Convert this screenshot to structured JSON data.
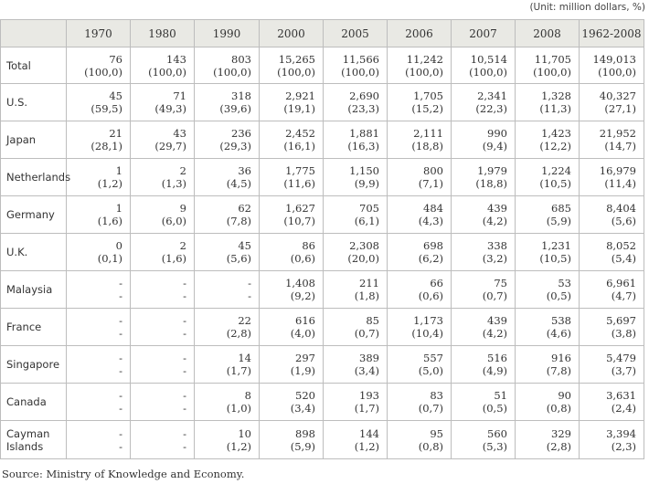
{
  "unit_note": "(Unit: million dollars, %)",
  "header": [
    "",
    "1970",
    "1980",
    "1990",
    "2000",
    "2005",
    "2006",
    "2007",
    "2008",
    "1962-2008"
  ],
  "rows": [
    {
      "label": "Total",
      "cells": [
        [
          "76",
          "(100,0)"
        ],
        [
          "143",
          "(100,0)"
        ],
        [
          "803",
          "(100,0)"
        ],
        [
          "15,265",
          "(100,0)"
        ],
        [
          "11,566",
          "(100,0)"
        ],
        [
          "11,242",
          "(100,0)"
        ],
        [
          "10,514",
          "(100,0)"
        ],
        [
          "11,705",
          "(100,0)"
        ],
        [
          "149,013",
          "(100,0)"
        ]
      ]
    },
    {
      "label": "U.S.",
      "cells": [
        [
          "45",
          "(59,5)"
        ],
        [
          "71",
          "(49,3)"
        ],
        [
          "318",
          "(39,6)"
        ],
        [
          "2,921",
          "(19,1)"
        ],
        [
          "2,690",
          "(23,3)"
        ],
        [
          "1,705",
          "(15,2)"
        ],
        [
          "2,341",
          "(22,3)"
        ],
        [
          "1,328",
          "(11,3)"
        ],
        [
          "40,327",
          "(27,1)"
        ]
      ]
    },
    {
      "label": "Japan",
      "cells": [
        [
          "21",
          "(28,1)"
        ],
        [
          "43",
          "(29,7)"
        ],
        [
          "236",
          "(29,3)"
        ],
        [
          "2,452",
          "(16,1)"
        ],
        [
          "1,881",
          "(16,3)"
        ],
        [
          "2,111",
          "(18,8)"
        ],
        [
          "990",
          "(9,4)"
        ],
        [
          "1,423",
          "(12,2)"
        ],
        [
          "21,952",
          "(14,7)"
        ]
      ]
    },
    {
      "label": "Netherlands",
      "cells": [
        [
          "1",
          "(1,2)"
        ],
        [
          "2",
          "(1,3)"
        ],
        [
          "36",
          "(4,5)"
        ],
        [
          "1,775",
          "(11,6)"
        ],
        [
          "1,150",
          "(9,9)"
        ],
        [
          "800",
          "(7,1)"
        ],
        [
          "1,979",
          "(18,8)"
        ],
        [
          "1,224",
          "(10,5)"
        ],
        [
          "16,979",
          "(11,4)"
        ]
      ]
    },
    {
      "label": "Germany",
      "cells": [
        [
          "1",
          "(1,6)"
        ],
        [
          "9",
          "(6,0)"
        ],
        [
          "62",
          "(7,8)"
        ],
        [
          "1,627",
          "(10,7)"
        ],
        [
          "705",
          "(6,1)"
        ],
        [
          "484",
          "(4,3)"
        ],
        [
          "439",
          "(4,2)"
        ],
        [
          "685",
          "(5,9)"
        ],
        [
          "8,404",
          "(5,6)"
        ]
      ]
    },
    {
      "label": "U.K.",
      "cells": [
        [
          "0",
          "(0,1)"
        ],
        [
          "2",
          "(1,6)"
        ],
        [
          "45",
          "(5,6)"
        ],
        [
          "86",
          "(0,6)"
        ],
        [
          "2,308",
          "(20,0)"
        ],
        [
          "698",
          "(6,2)"
        ],
        [
          "338",
          "(3,2)"
        ],
        [
          "1,231",
          "(10,5)"
        ],
        [
          "8,052",
          "(5,4)"
        ]
      ]
    },
    {
      "label": "Malaysia",
      "cells": [
        [
          "-",
          "-"
        ],
        [
          "-",
          "-"
        ],
        [
          "-",
          "-"
        ],
        [
          "1,408",
          "(9,2)"
        ],
        [
          "211",
          "(1,8)"
        ],
        [
          "66",
          "(0,6)"
        ],
        [
          "75",
          "(0,7)"
        ],
        [
          "53",
          "(0,5)"
        ],
        [
          "6,961",
          "(4,7)"
        ]
      ]
    },
    {
      "label": "France",
      "cells": [
        [
          "-",
          "-"
        ],
        [
          "-",
          "-"
        ],
        [
          "22",
          "(2,8)"
        ],
        [
          "616",
          "(4,0)"
        ],
        [
          "85",
          "(0,7)"
        ],
        [
          "1,173",
          "(10,4)"
        ],
        [
          "439",
          "(4,2)"
        ],
        [
          "538",
          "(4,6)"
        ],
        [
          "5,697",
          "(3,8)"
        ]
      ]
    },
    {
      "label": "Singapore",
      "cells": [
        [
          "-",
          "-"
        ],
        [
          "-",
          "-"
        ],
        [
          "14",
          "(1,7)"
        ],
        [
          "297",
          "(1,9)"
        ],
        [
          "389",
          "(3,4)"
        ],
        [
          "557",
          "(5,0)"
        ],
        [
          "516",
          "(4,9)"
        ],
        [
          "916",
          "(7,8)"
        ],
        [
          "5,479",
          "(3,7)"
        ]
      ]
    },
    {
      "label": "Canada",
      "cells": [
        [
          "-",
          "-"
        ],
        [
          "-",
          "-"
        ],
        [
          "8",
          "(1,0)"
        ],
        [
          "520",
          "(3,4)"
        ],
        [
          "193",
          "(1,7)"
        ],
        [
          "83",
          "(0,7)"
        ],
        [
          "51",
          "(0,5)"
        ],
        [
          "90",
          "(0,8)"
        ],
        [
          "3,631",
          "(2,4)"
        ]
      ]
    },
    {
      "label": "Cayman Islands",
      "label_lines": [
        "Cayman",
        "Islands"
      ],
      "cells": [
        [
          "-",
          "-"
        ],
        [
          "-",
          "-"
        ],
        [
          "10",
          "(1,2)"
        ],
        [
          "898",
          "(5,9)"
        ],
        [
          "144",
          "(1,2)"
        ],
        [
          "95",
          "(0,8)"
        ],
        [
          "560",
          "(5,3)"
        ],
        [
          "329",
          "(2,8)"
        ],
        [
          "3,394",
          "(2,3)"
        ]
      ]
    }
  ],
  "source": "Source: Ministry of Knowledge and Economy."
}
